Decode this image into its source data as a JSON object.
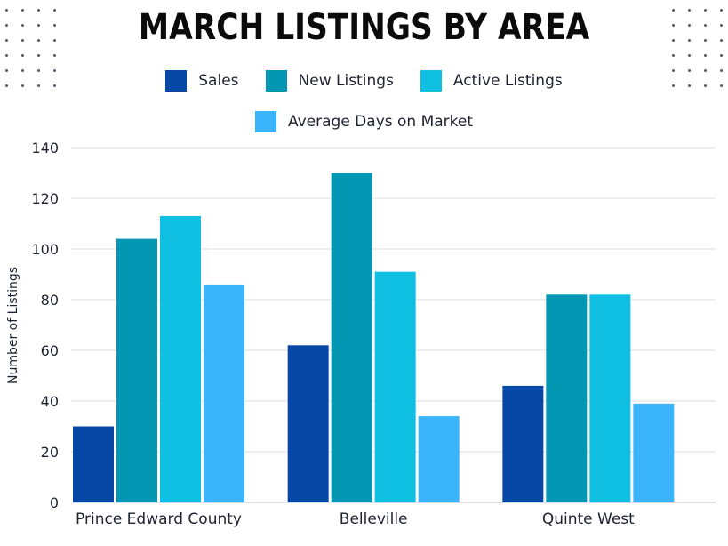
{
  "chart_data": {
    "type": "bar",
    "title": "MARCH LISTINGS BY AREA",
    "ylabel": "Number of Listings",
    "xlabel": "",
    "categories": [
      "Prince Edward County",
      "Belleville",
      "Quinte West"
    ],
    "series": [
      {
        "name": "Sales",
        "color": "#0747a6",
        "values": [
          30,
          62,
          46
        ]
      },
      {
        "name": "New Listings",
        "color": "#0397b3",
        "values": [
          104,
          130,
          82
        ]
      },
      {
        "name": "Active Listings",
        "color": "#10c0e2",
        "values": [
          113,
          91,
          82
        ]
      },
      {
        "name": "Average Days on Market",
        "color": "#3ab4fb",
        "values": [
          86,
          34,
          39
        ]
      }
    ],
    "ylim": [
      0,
      140
    ],
    "yticks": [
      "0",
      "20",
      "40",
      "60",
      "80",
      "100",
      "120",
      "140"
    ],
    "grid": true,
    "legend_position": "top"
  }
}
